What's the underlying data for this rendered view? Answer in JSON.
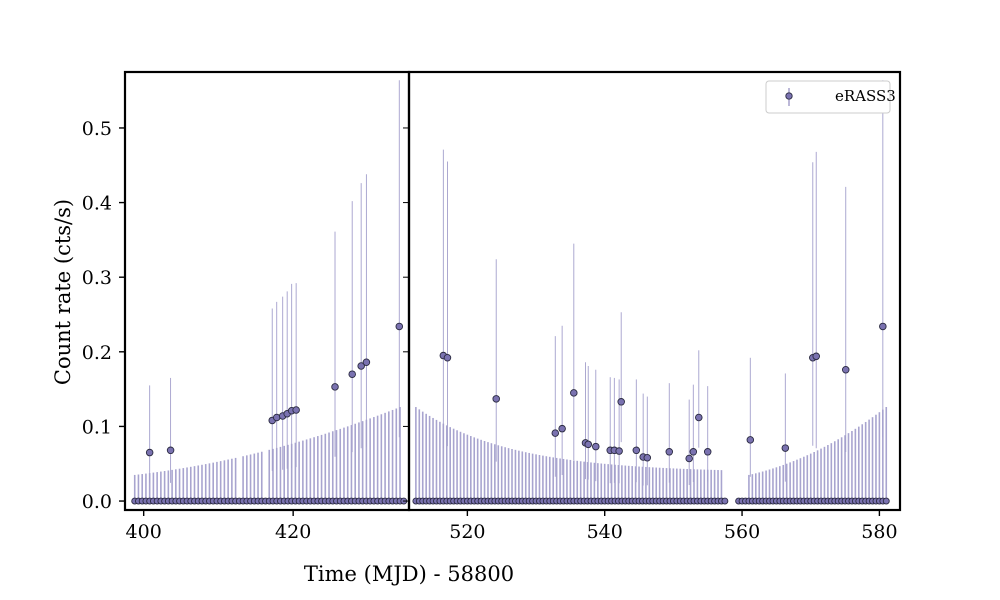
{
  "chart_data": {
    "type": "scatter",
    "xlabel": "Time (MJD) - 58800",
    "ylabel": "Count rate (cts/s)",
    "ylim": [
      -0.012,
      0.575
    ],
    "yticks": [
      0.0,
      0.1,
      0.2,
      0.3,
      0.4,
      0.5
    ],
    "ytick_labels": [
      "0.0",
      "0.1",
      "0.2",
      "0.3",
      "0.4",
      "0.5"
    ],
    "grid": false,
    "legend_position": "top-right",
    "colors": {
      "marker_fill": "#7a72b0",
      "marker_edge": "#2a2a40",
      "errorbar": "#a39fcc",
      "axes": "#000000"
    },
    "panels": [
      {
        "xlim": [
          397.5,
          435.5
        ],
        "xticks": [
          400,
          420
        ],
        "xtick_labels": [
          "400",
          "420"
        ],
        "upper_limit_bars": {
          "start": 398.8,
          "end": 434.6,
          "step": 0.5,
          "y_start": 0.035,
          "y_end": 0.126,
          "skip_ranges": [
            [
              412.8,
              413.1
            ],
            [
              416.2,
              416.5
            ]
          ]
        },
        "zero_points": {
          "start": 398.8,
          "end": 435.0,
          "step": 0.5,
          "y": 0.0
        }
      },
      {
        "xlim": [
          511.5,
          583.0
        ],
        "xticks": [
          520,
          540,
          560,
          580
        ],
        "xtick_labels": [
          "520",
          "540",
          "560",
          "580"
        ],
        "upper_limit_bars": {
          "segments": [
            {
              "start": 512.5,
              "end": 557.0,
              "step": 0.5,
              "y_start": 0.126,
              "y_end": 0.038,
              "shape": "decay"
            },
            {
              "start": 561.0,
              "end": 581.0,
              "step": 0.5,
              "y_start": 0.035,
              "y_end": 0.126,
              "shape": "rise"
            }
          ]
        },
        "zero_points": {
          "segments": [
            {
              "start": 512.5,
              "end": 557.5,
              "step": 0.5
            },
            {
              "start": 559.5,
              "end": 581.0,
              "step": 0.5
            }
          ],
          "y": 0.0
        }
      }
    ],
    "series": [
      {
        "name": "eRASS3",
        "points": [
          {
            "x": 400.8,
            "y": 0.065,
            "yerr_up": 0.09
          },
          {
            "x": 403.6,
            "y": 0.068,
            "yerr_up": 0.097
          },
          {
            "x": 417.2,
            "y": 0.108,
            "yerr_up": 0.15
          },
          {
            "x": 417.8,
            "y": 0.112,
            "yerr_up": 0.155
          },
          {
            "x": 418.6,
            "y": 0.114,
            "yerr_up": 0.16
          },
          {
            "x": 419.2,
            "y": 0.117,
            "yerr_up": 0.164
          },
          {
            "x": 419.8,
            "y": 0.121,
            "yerr_up": 0.17
          },
          {
            "x": 420.4,
            "y": 0.122,
            "yerr_up": 0.17
          },
          {
            "x": 425.6,
            "y": 0.153,
            "yerr_up": 0.208
          },
          {
            "x": 427.9,
            "y": 0.17,
            "yerr_up": 0.232
          },
          {
            "x": 429.1,
            "y": 0.181,
            "yerr_up": 0.245
          },
          {
            "x": 429.8,
            "y": 0.186,
            "yerr_up": 0.252
          },
          {
            "x": 434.2,
            "y": 0.234,
            "yerr_up": 0.33
          },
          {
            "x": 516.5,
            "y": 0.195,
            "yerr_up": 0.276
          },
          {
            "x": 517.1,
            "y": 0.192,
            "yerr_up": 0.263
          },
          {
            "x": 524.2,
            "y": 0.137,
            "yerr_up": 0.187
          },
          {
            "x": 532.8,
            "y": 0.091,
            "yerr_up": 0.13
          },
          {
            "x": 533.8,
            "y": 0.097,
            "yerr_up": 0.138
          },
          {
            "x": 535.5,
            "y": 0.145,
            "yerr_up": 0.2
          },
          {
            "x": 537.2,
            "y": 0.078,
            "yerr_up": 0.108
          },
          {
            "x": 537.6,
            "y": 0.076,
            "yerr_up": 0.105
          },
          {
            "x": 538.7,
            "y": 0.073,
            "yerr_up": 0.103
          },
          {
            "x": 540.8,
            "y": 0.068,
            "yerr_up": 0.098
          },
          {
            "x": 541.4,
            "y": 0.068,
            "yerr_up": 0.097
          },
          {
            "x": 542.1,
            "y": 0.067,
            "yerr_up": 0.096
          },
          {
            "x": 542.4,
            "y": 0.133,
            "yerr_up": 0.12
          },
          {
            "x": 544.6,
            "y": 0.068,
            "yerr_up": 0.095
          },
          {
            "x": 545.6,
            "y": 0.059,
            "yerr_up": 0.085
          },
          {
            "x": 546.2,
            "y": 0.058,
            "yerr_up": 0.082
          },
          {
            "x": 549.4,
            "y": 0.066,
            "yerr_up": 0.092
          },
          {
            "x": 552.3,
            "y": 0.057,
            "yerr_up": 0.079
          },
          {
            "x": 552.9,
            "y": 0.066,
            "yerr_up": 0.09
          },
          {
            "x": 553.7,
            "y": 0.112,
            "yerr_up": 0.09
          },
          {
            "x": 555.0,
            "y": 0.066,
            "yerr_up": 0.088
          },
          {
            "x": 561.2,
            "y": 0.082,
            "yerr_up": 0.11
          },
          {
            "x": 566.3,
            "y": 0.071,
            "yerr_up": 0.1
          },
          {
            "x": 570.3,
            "y": 0.192,
            "yerr_up": 0.262
          },
          {
            "x": 570.8,
            "y": 0.194,
            "yerr_up": 0.274
          },
          {
            "x": 575.1,
            "y": 0.176,
            "yerr_up": 0.245
          },
          {
            "x": 580.5,
            "y": 0.234,
            "yerr_up": 0.33
          }
        ]
      }
    ]
  }
}
